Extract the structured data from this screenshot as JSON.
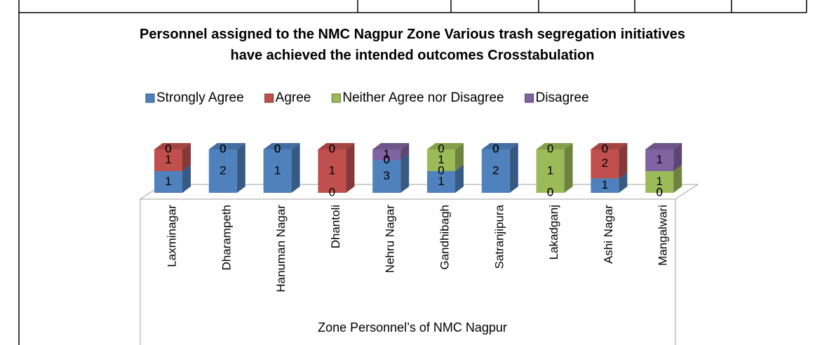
{
  "chart_data": {
    "type": "bar3d_stacked_percent",
    "title": "Personnel assigned to the NMC Nagpur Zone Various trash segregation initiatives have achieved the intended outcomes Crosstabulation",
    "x_label": "Zone Personnel’s of NMC Nagpur",
    "categories": [
      "Laxminagar",
      "Dharampeth",
      "Hanuman Nagar",
      "Dhantoli",
      "Nehru Nagar",
      "Gandhibagh",
      "Satranjipura",
      "Lakadganj",
      "Ashi Nagar",
      "Mangalwari"
    ],
    "series": [
      {
        "name": "Strongly Agree",
        "color": "#4f81bd",
        "values": [
          1,
          2,
          1,
          0,
          3,
          1,
          2,
          0,
          1,
          0
        ]
      },
      {
        "name": "Agree",
        "color": "#c0504d",
        "values": [
          1,
          0,
          0,
          1,
          0,
          0,
          0,
          0,
          2,
          0
        ]
      },
      {
        "name": "Neither Agree nor Disagree",
        "color": "#9bbb59",
        "values": [
          0,
          0,
          0,
          0,
          0,
          1,
          0,
          1,
          0,
          1
        ]
      },
      {
        "name": "Disagree",
        "color": "#8064a2",
        "values": [
          0,
          0,
          0,
          0,
          1,
          0,
          0,
          0,
          0,
          1
        ]
      }
    ],
    "legend": "top"
  }
}
